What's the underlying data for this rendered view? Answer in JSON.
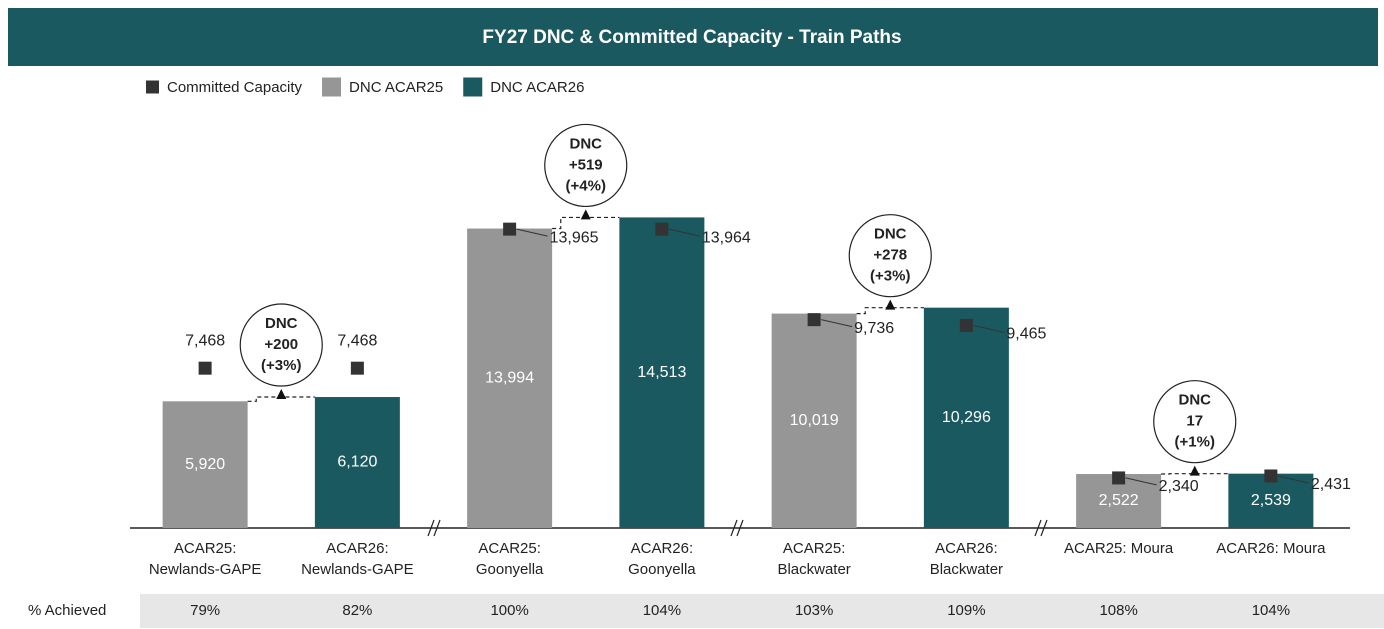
{
  "chart_data": {
    "type": "bar",
    "title": "FY27 DNC & Committed Capacity  - Train Paths",
    "categories": [
      [
        "ACAR25:",
        "Newlands-GAPE"
      ],
      [
        "ACAR26:",
        "Newlands-GAPE"
      ],
      [
        "ACAR25:",
        "Goonyella"
      ],
      [
        "ACAR26:",
        "Goonyella"
      ],
      [
        "ACAR25:",
        "Blackwater"
      ],
      [
        "ACAR26:",
        "Blackwater"
      ],
      [
        "ACAR25: Moura"
      ],
      [
        "ACAR26: Moura"
      ]
    ],
    "series": [
      {
        "name": "Committed Capacity",
        "mark": "square",
        "color": "#333333",
        "values": [
          7468,
          7468,
          13965,
          13964,
          9736,
          9465,
          2340,
          2431
        ],
        "value_labels": [
          "7,468",
          "7,468",
          "13,965",
          "13,964",
          "9,736",
          "9,465",
          "2,340",
          "2,431"
        ]
      },
      {
        "name": "DNC ACAR25",
        "color": "#969696",
        "values": [
          5920,
          null,
          13994,
          null,
          10019,
          null,
          2522,
          null
        ],
        "value_labels": [
          "5,920",
          null,
          "13,994",
          null,
          "10,019",
          null,
          "2,522",
          null
        ]
      },
      {
        "name": "DNC ACAR26",
        "color": "#1a5960",
        "values": [
          null,
          6120,
          null,
          14513,
          null,
          10296,
          null,
          2539
        ],
        "value_labels": [
          null,
          "6,120",
          null,
          "14,513",
          null,
          "10,296",
          null,
          "2,539"
        ]
      }
    ],
    "ylim": [
      0,
      15000
    ],
    "annotations": [
      {
        "lines": [
          "DNC",
          "+200",
          "(+3%)"
        ]
      },
      {
        "lines": [
          "DNC",
          "+519",
          "(+4%)"
        ]
      },
      {
        "lines": [
          "DNC",
          "+278",
          "(+3%)"
        ]
      },
      {
        "lines": [
          "DNC",
          "17",
          "(+1%)"
        ]
      }
    ],
    "achieved": {
      "label": "% Achieved",
      "values": [
        "79%",
        "82%",
        "100%",
        "104%",
        "103%",
        "109%",
        "108%",
        "104%"
      ]
    }
  }
}
